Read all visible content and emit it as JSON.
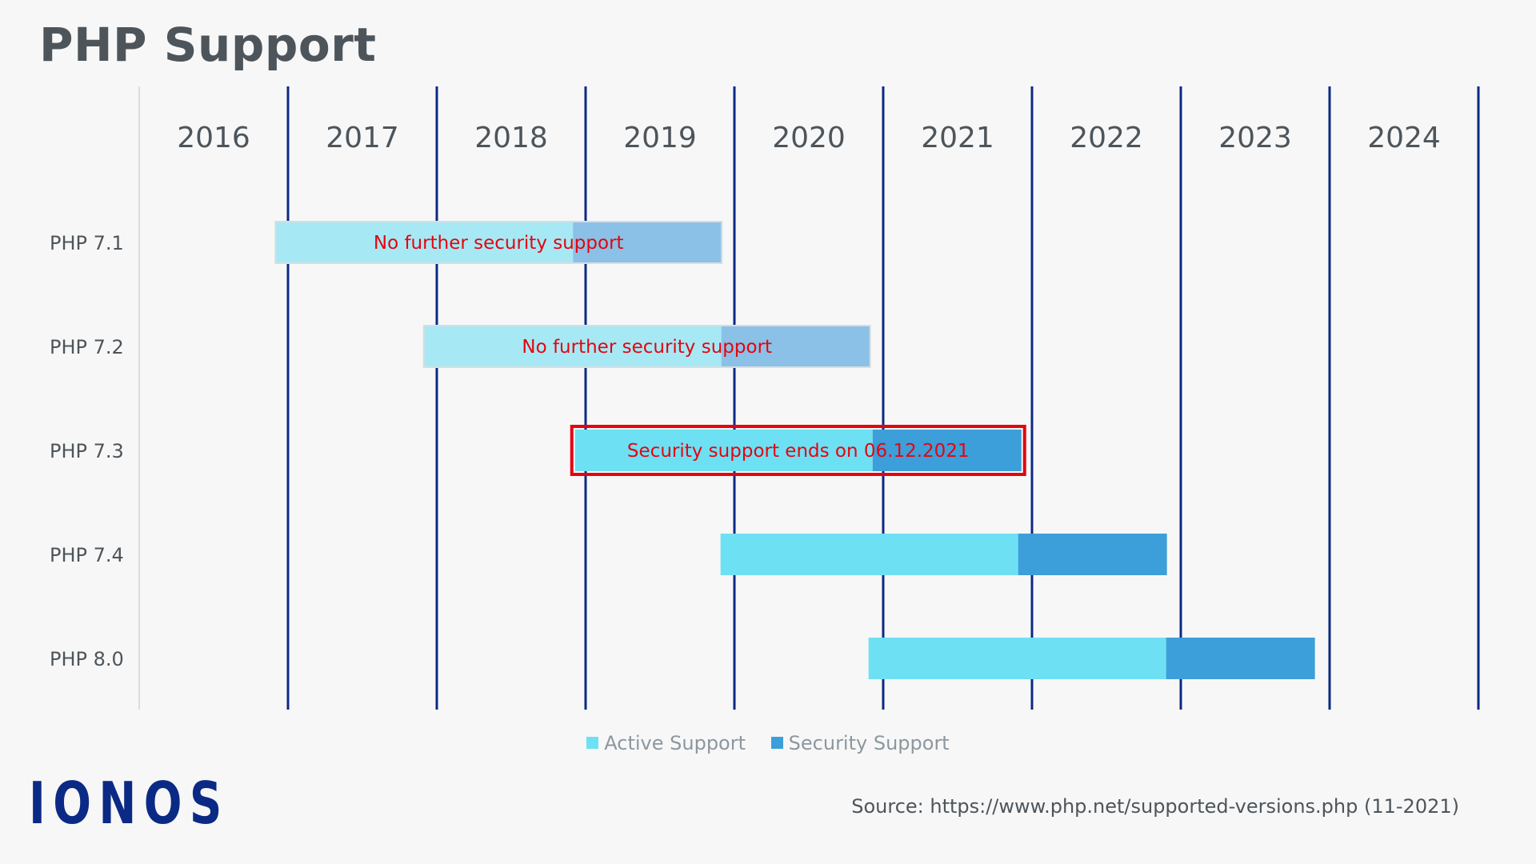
{
  "title": "PHP Support",
  "logo_text": "IONOS",
  "source": "Source: https://www.php.net/supported-versions.php (11-2021)",
  "colors": {
    "background": "#f7f7f7",
    "year_line": "#0b2a85",
    "active": "#6ee0f4",
    "security": "#3c9fd9",
    "active_faded": "#a6e9f5",
    "security_faded": "#8bc1e6",
    "highlight": "#e3050f",
    "annotation_text": "#e3050f"
  },
  "chart_data": {
    "type": "gantt",
    "title": "PHP Support",
    "x_axis": {
      "type": "time",
      "range": [
        "2016-01-01",
        "2025-01-01"
      ],
      "tick_labels": [
        "2016",
        "2017",
        "2018",
        "2019",
        "2020",
        "2021",
        "2022",
        "2023",
        "2024"
      ]
    },
    "categories": [
      "PHP 7.1",
      "PHP 7.2",
      "PHP 7.3",
      "PHP 7.4",
      "PHP 8.0"
    ],
    "series": [
      {
        "name": "Active Support",
        "color": "#6ee0f4"
      },
      {
        "name": "Security Support",
        "color": "#3c9fd9"
      }
    ],
    "rows": [
      {
        "label": "PHP 7.1",
        "active_start": "2016-12-01",
        "active_end": "2018-12-01",
        "security_end": "2019-12-01",
        "faded": true,
        "annotation": "No further security support",
        "highlight": false
      },
      {
        "label": "PHP 7.2",
        "active_start": "2017-11-30",
        "active_end": "2019-11-30",
        "security_end": "2020-11-30",
        "faded": true,
        "annotation": "No further security support",
        "highlight": false
      },
      {
        "label": "PHP 7.3",
        "active_start": "2018-12-06",
        "active_end": "2020-12-06",
        "security_end": "2021-12-06",
        "faded": false,
        "annotation": "Security support ends on 06.12.2021",
        "highlight": true
      },
      {
        "label": "PHP 7.4",
        "active_start": "2019-11-28",
        "active_end": "2021-11-28",
        "security_end": "2022-11-28",
        "faded": false,
        "annotation": "",
        "highlight": false
      },
      {
        "label": "PHP 8.0",
        "active_start": "2020-11-26",
        "active_end": "2022-11-26",
        "security_end": "2023-11-26",
        "faded": false,
        "annotation": "",
        "highlight": false
      }
    ],
    "legend": {
      "position": "bottom-center",
      "items": [
        "Active Support",
        "Security Support"
      ]
    },
    "grid": true
  }
}
